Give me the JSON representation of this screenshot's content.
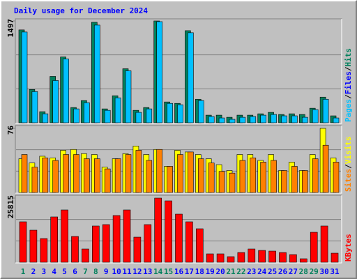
{
  "title": "Daily usage for December 2024",
  "separator": "/",
  "chart_data": [
    {
      "type": "bar",
      "ylim": [
        0,
        1497
      ],
      "yticks": [
        1497
      ],
      "legend": [
        {
          "name": "Pages",
          "color": "#00c0ff"
        },
        {
          "name": "Files",
          "color": "#0000ff"
        },
        {
          "name": "Hits",
          "color": "#00805c"
        }
      ],
      "series": [
        {
          "color": "#00805c",
          "values": [
            1365,
            489,
            163,
            682,
            967,
            224,
            326,
            1477,
            204,
            397,
            794,
            183,
            224,
            1497,
            306,
            285,
            1354,
            346,
            112,
            112,
            81,
            112,
            112,
            132,
            153,
            122,
            132,
            122,
            214,
            377,
            102
          ]
        },
        {
          "color": "#00c0ff",
          "values": [
            1334,
            458,
            132,
            621,
            937,
            204,
            295,
            1436,
            183,
            367,
            764,
            153,
            204,
            1487,
            285,
            265,
            1324,
            326,
            92,
            71,
            51,
            81,
            92,
            112,
            122,
            102,
            102,
            81,
            193,
            346,
            71
          ]
        }
      ]
    },
    {
      "type": "bar",
      "ylim": [
        0,
        76
      ],
      "yticks": [
        76
      ],
      "legend": [
        {
          "name": "Sites",
          "color": "#ff8000"
        },
        {
          "name": "Visits",
          "color": "#ffff00"
        }
      ],
      "series": [
        {
          "color": "#ffff00",
          "values": [
            40,
            35,
            43,
            41,
            50,
            51,
            46,
            45,
            30,
            40,
            46,
            55,
            45,
            51,
            31,
            50,
            48,
            45,
            40,
            33,
            26,
            45,
            45,
            38,
            45,
            26,
            36,
            26,
            45,
            76,
            41
          ]
        },
        {
          "color": "#ff8000",
          "values": [
            45,
            30,
            41,
            38,
            45,
            45,
            40,
            40,
            28,
            40,
            45,
            50,
            38,
            51,
            31,
            45,
            48,
            40,
            35,
            25,
            23,
            38,
            41,
            36,
            38,
            26,
            31,
            26,
            40,
            56,
            36
          ]
        }
      ]
    },
    {
      "type": "bar",
      "ylim": [
        0,
        25815
      ],
      "yticks": [
        25815
      ],
      "legend": [
        {
          "name": "KBytes",
          "color": "#ff0000"
        }
      ],
      "categories": [
        "1",
        "2",
        "3",
        "4",
        "5",
        "6",
        "7",
        "8",
        "9",
        "10",
        "11",
        "12",
        "13",
        "14",
        "15",
        "16",
        "17",
        "18",
        "19",
        "20",
        "21",
        "22",
        "23",
        "24",
        "25",
        "26",
        "27",
        "28",
        "29",
        "30",
        "31"
      ],
      "category_colors": [
        "#00805c",
        "#0000ff",
        "#0000ff",
        "#0000ff",
        "#0000ff",
        "#0000ff",
        "#00805c",
        "#00805c",
        "#0000ff",
        "#0000ff",
        "#0000ff",
        "#0000ff",
        "#0000ff",
        "#00805c",
        "#00805c",
        "#0000ff",
        "#0000ff",
        "#0000ff",
        "#0000ff",
        "#0000ff",
        "#00805c",
        "#00805c",
        "#0000ff",
        "#0000ff",
        "#0000ff",
        "#0000ff",
        "#0000ff",
        "#00805c",
        "#00805c",
        "#0000ff",
        "#0000ff"
      ],
      "series": [
        {
          "color": "#ff0000",
          "values": [
            16275,
            12908,
            9540,
            18239,
            21045,
            10382,
            5331,
            14591,
            15153,
            18800,
            21045,
            10101,
            15153,
            25815,
            24693,
            19362,
            16275,
            13469,
            3367,
            3367,
            2245,
            3928,
            5331,
            4770,
            4490,
            3928,
            3087,
            1403,
            12066,
            14591,
            3648
          ]
        }
      ]
    }
  ]
}
